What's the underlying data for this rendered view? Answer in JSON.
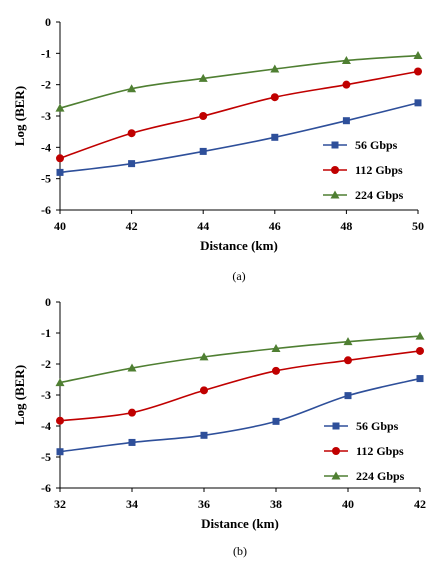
{
  "chart_data": [
    {
      "type": "line",
      "caption": "(a)",
      "xlabel": "Distance (km)",
      "ylabel": "Log (BER)",
      "x": [
        40,
        42,
        44,
        46,
        48,
        50
      ],
      "xlim": [
        40,
        50
      ],
      "ylim": [
        -6,
        0
      ],
      "xticks": [
        "40",
        "42",
        "44",
        "46",
        "48",
        "50"
      ],
      "yticks": [
        "0",
        "-1",
        "-2",
        "-3",
        "-4",
        "-5",
        "-6"
      ],
      "grid": false,
      "legend_position": "bottom-right",
      "series": [
        {
          "name": "56  Gbps",
          "marker": "square",
          "color": "#2e4f9a",
          "values": [
            -4.8,
            -4.52,
            -4.13,
            -3.68,
            -3.15,
            -2.58
          ]
        },
        {
          "name": "112 Gbps",
          "marker": "circle",
          "color": "#c00000",
          "values": [
            -4.35,
            -3.55,
            -3.0,
            -2.4,
            -2.0,
            -1.58
          ]
        },
        {
          "name": "224 Gbps",
          "marker": "triangle",
          "color": "#4f7f32",
          "values": [
            -2.75,
            -2.13,
            -1.8,
            -1.5,
            -1.23,
            -1.07
          ]
        }
      ]
    },
    {
      "type": "line",
      "caption": "(b)",
      "xlabel": "Distance (km)",
      "ylabel": "Log (BER)",
      "x": [
        32,
        34,
        36,
        38,
        40,
        42
      ],
      "xlim": [
        32,
        42
      ],
      "ylim": [
        -6,
        0
      ],
      "xticks": [
        "32",
        "34",
        "36",
        "38",
        "40",
        "42"
      ],
      "yticks": [
        "0",
        "-1",
        "-2",
        "-3",
        "-4",
        "-5",
        "-6"
      ],
      "grid": false,
      "legend_position": "bottom-right",
      "series": [
        {
          "name": "56   Gbps",
          "marker": "square",
          "color": "#2e4f9a",
          "values": [
            -4.83,
            -4.53,
            -4.3,
            -3.85,
            -3.02,
            -2.47
          ]
        },
        {
          "name": "112 Gbps",
          "marker": "circle",
          "color": "#c00000",
          "values": [
            -3.83,
            -3.57,
            -2.85,
            -2.22,
            -1.88,
            -1.58
          ]
        },
        {
          "name": "224 Gbps",
          "marker": "triangle",
          "color": "#4f7f32",
          "values": [
            -2.6,
            -2.13,
            -1.77,
            -1.5,
            -1.28,
            -1.1
          ]
        }
      ]
    }
  ]
}
